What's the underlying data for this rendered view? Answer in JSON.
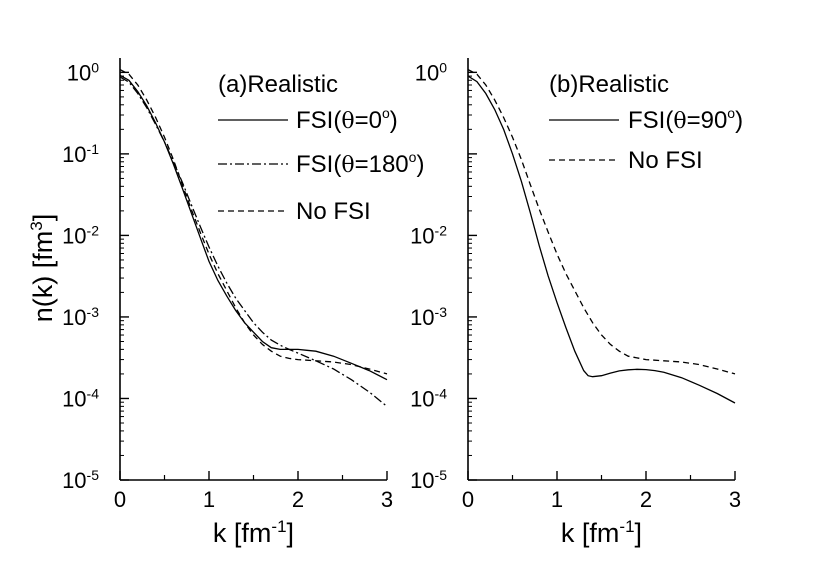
{
  "ylabel": {
    "base": "n(k)  [fm",
    "sup": "3",
    "close": "]"
  },
  "chart_data": [
    {
      "panel": "a",
      "type": "line",
      "title": "(a)Realistic",
      "xlabel": {
        "base": "k  [fm",
        "sup": "-1",
        "close": "]"
      },
      "xlim": [
        0,
        3
      ],
      "ylim": [
        1e-05,
        1.5
      ],
      "yscale": "log",
      "xticks": [
        0,
        1,
        2,
        3
      ],
      "yticks": [
        {
          "value": 1,
          "base": "10",
          "exp": "0"
        },
        {
          "value": 0.1,
          "base": "10",
          "exp": "-1"
        },
        {
          "value": 0.01,
          "base": "10",
          "exp": "-2"
        },
        {
          "value": 0.001,
          "base": "10",
          "exp": "-3"
        },
        {
          "value": 0.0001,
          "base": "10",
          "exp": "-4"
        },
        {
          "value": 1e-05,
          "base": "10",
          "exp": "-5"
        }
      ],
      "series": [
        {
          "name": "FSI(θ=0°)",
          "legend": {
            "pre": "FSI(",
            "theta": "θ",
            "mid": "=0",
            "deg": "o",
            "post": ")"
          },
          "style": "solid",
          "x": [
            0,
            0.1,
            0.2,
            0.3,
            0.4,
            0.5,
            0.6,
            0.7,
            0.8,
            0.9,
            1.0,
            1.1,
            1.2,
            1.3,
            1.4,
            1.5,
            1.6,
            1.7,
            1.8,
            1.9,
            2.0,
            2.1,
            2.2,
            2.4,
            2.6,
            2.8,
            3.0
          ],
          "y": [
            0.92,
            0.8,
            0.58,
            0.39,
            0.24,
            0.14,
            0.075,
            0.038,
            0.019,
            0.0095,
            0.0048,
            0.0028,
            0.0018,
            0.0012,
            0.00085,
            0.00065,
            0.0005,
            0.00042,
            0.0004,
            0.0004,
            0.0004,
            0.00039,
            0.00038,
            0.00033,
            0.00027,
            0.00022,
            0.00017
          ]
        },
        {
          "name": "FSI(θ=180°)",
          "legend": {
            "pre": "FSI(",
            "theta": "θ",
            "mid": "=180",
            "deg": "o",
            "post": ")"
          },
          "style": "dashdot",
          "x": [
            0,
            0.1,
            0.2,
            0.3,
            0.4,
            0.5,
            0.6,
            0.7,
            0.8,
            0.9,
            1.0,
            1.1,
            1.2,
            1.3,
            1.4,
            1.5,
            1.6,
            1.7,
            1.8,
            1.9,
            2.0,
            2.2,
            2.4,
            2.6,
            2.8,
            3.0
          ],
          "y": [
            0.88,
            0.76,
            0.55,
            0.37,
            0.23,
            0.14,
            0.08,
            0.045,
            0.024,
            0.013,
            0.0072,
            0.0042,
            0.0026,
            0.0017,
            0.0012,
            0.00085,
            0.00065,
            0.00052,
            0.00045,
            0.0004,
            0.00036,
            0.00029,
            0.00023,
            0.00017,
            0.00012,
            8e-05
          ]
        },
        {
          "name": "No FSI",
          "legend": {
            "pre": "No FSI",
            "theta": "",
            "mid": "",
            "deg": "",
            "post": ""
          },
          "style": "dashed",
          "x": [
            0,
            0.1,
            0.2,
            0.3,
            0.4,
            0.5,
            0.6,
            0.7,
            0.8,
            0.9,
            1.0,
            1.1,
            1.2,
            1.3,
            1.4,
            1.5,
            1.6,
            1.7,
            1.8,
            1.9,
            2.0,
            2.2,
            2.4,
            2.6,
            2.8,
            3.0
          ],
          "y": [
            1.08,
            0.95,
            0.7,
            0.46,
            0.28,
            0.16,
            0.085,
            0.042,
            0.021,
            0.011,
            0.0059,
            0.0034,
            0.0021,
            0.0013,
            0.00085,
            0.0006,
            0.00046,
            0.00038,
            0.00033,
            0.00031,
            0.0003,
            0.00029,
            0.00028,
            0.00026,
            0.00023,
            0.0002
          ]
        }
      ]
    },
    {
      "panel": "b",
      "type": "line",
      "title": "(b)Realistic",
      "xlabel": {
        "base": "k  [fm",
        "sup": "-1",
        "close": "]"
      },
      "xlim": [
        0,
        3
      ],
      "ylim": [
        1e-05,
        1.5
      ],
      "yscale": "log",
      "xticks": [
        0,
        1,
        2,
        3
      ],
      "yticks": [
        {
          "value": 1,
          "base": "10",
          "exp": "0"
        },
        {
          "value": 0.1,
          "base": "",
          "exp": ""
        },
        {
          "value": 0.01,
          "base": "10",
          "exp": "-2"
        },
        {
          "value": 0.001,
          "base": "10",
          "exp": "-3"
        },
        {
          "value": 0.0001,
          "base": "10",
          "exp": "-4"
        },
        {
          "value": 1e-05,
          "base": "10",
          "exp": "-5"
        }
      ],
      "series": [
        {
          "name": "FSI(θ=90°)",
          "legend": {
            "pre": "FSI(",
            "theta": "θ",
            "mid": "=90",
            "deg": "o",
            "post": ")"
          },
          "style": "solid",
          "x": [
            0,
            0.1,
            0.2,
            0.3,
            0.4,
            0.5,
            0.6,
            0.7,
            0.8,
            0.9,
            1.0,
            1.1,
            1.2,
            1.3,
            1.35,
            1.4,
            1.5,
            1.6,
            1.7,
            1.8,
            1.9,
            2.0,
            2.1,
            2.2,
            2.4,
            2.6,
            2.8,
            3.0
          ],
          "y": [
            0.9,
            0.77,
            0.55,
            0.35,
            0.2,
            0.1,
            0.046,
            0.019,
            0.0075,
            0.0032,
            0.0015,
            0.00074,
            0.00038,
            0.00022,
            0.00019,
            0.000185,
            0.00019,
            0.000205,
            0.000218,
            0.000225,
            0.000228,
            0.000226,
            0.00022,
            0.00021,
            0.00018,
            0.000145,
            0.000115,
            8.8e-05
          ]
        },
        {
          "name": "No FSI",
          "legend": {
            "pre": "No FSI",
            "theta": "",
            "mid": "",
            "deg": "",
            "post": ""
          },
          "style": "dashed",
          "x": [
            0,
            0.1,
            0.2,
            0.3,
            0.4,
            0.5,
            0.6,
            0.7,
            0.8,
            0.9,
            1.0,
            1.1,
            1.2,
            1.3,
            1.4,
            1.5,
            1.6,
            1.7,
            1.8,
            2.0,
            2.2,
            2.4,
            2.6,
            2.8,
            3.0
          ],
          "y": [
            1.08,
            0.95,
            0.7,
            0.46,
            0.28,
            0.16,
            0.085,
            0.042,
            0.021,
            0.011,
            0.0059,
            0.0034,
            0.0021,
            0.0013,
            0.00085,
            0.0006,
            0.00046,
            0.00038,
            0.00033,
            0.0003,
            0.00029,
            0.00028,
            0.00026,
            0.00023,
            0.0002
          ]
        }
      ]
    }
  ]
}
